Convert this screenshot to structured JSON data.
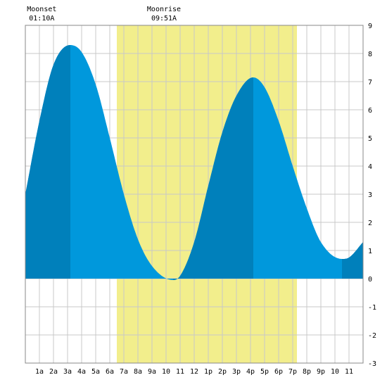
{
  "chart_data": {
    "type": "area",
    "title": "",
    "xlabel": "",
    "ylabel": "",
    "x_range": [
      0,
      24
    ],
    "ylim": [
      -3,
      9
    ],
    "y_ticks": [
      -3,
      -2,
      -1,
      0,
      1,
      2,
      3,
      4,
      5,
      6,
      7,
      8,
      9
    ],
    "x_ticks": [
      {
        "x": 1,
        "label": "1a"
      },
      {
        "x": 2,
        "label": "2a"
      },
      {
        "x": 3,
        "label": "3a"
      },
      {
        "x": 4,
        "label": "4a"
      },
      {
        "x": 5,
        "label": "5a"
      },
      {
        "x": 6,
        "label": "6a"
      },
      {
        "x": 7,
        "label": "7a"
      },
      {
        "x": 8,
        "label": "8a"
      },
      {
        "x": 9,
        "label": "9a"
      },
      {
        "x": 10,
        "label": "10"
      },
      {
        "x": 11,
        "label": "11"
      },
      {
        "x": 12,
        "label": "12"
      },
      {
        "x": 13,
        "label": "1p"
      },
      {
        "x": 14,
        "label": "2p"
      },
      {
        "x": 15,
        "label": "3p"
      },
      {
        "x": 16,
        "label": "4p"
      },
      {
        "x": 17,
        "label": "5p"
      },
      {
        "x": 18,
        "label": "6p"
      },
      {
        "x": 19,
        "label": "7p"
      },
      {
        "x": 20,
        "label": "8p"
      },
      {
        "x": 21,
        "label": "9p"
      },
      {
        "x": 22,
        "label": "10"
      },
      {
        "x": 23,
        "label": "11"
      }
    ],
    "grid": true,
    "daylight": {
      "start": 6.5,
      "end": 19.3,
      "color": "#f2ee8c"
    },
    "series": [
      {
        "color": "#0098dc",
        "dark_color": "#0080bb",
        "x": [
          0,
          1,
          2,
          3.2,
          4,
          5,
          6,
          7,
          8,
          9,
          10.5,
          11,
          12,
          13,
          14,
          15,
          16.2,
          17,
          18,
          19,
          20,
          21,
          22.5,
          23,
          24
        ],
        "values": [
          3.0,
          5.6,
          7.6,
          8.3,
          8.05,
          6.9,
          5.0,
          3.0,
          1.4,
          0.45,
          -0.05,
          0.1,
          1.3,
          3.3,
          5.2,
          6.5,
          7.15,
          6.8,
          5.6,
          4.0,
          2.5,
          1.3,
          0.7,
          0.75,
          1.3
        ],
        "dark_bands": [
          [
            0,
            3.2
          ],
          [
            10.5,
            16.2
          ],
          [
            22.5,
            24
          ]
        ]
      }
    ],
    "annotations": [
      {
        "x": 1.167,
        "label": "Moonset",
        "time": "01:10A"
      },
      {
        "x": 9.85,
        "label": "Moonrise",
        "time": "09:51A"
      }
    ]
  }
}
